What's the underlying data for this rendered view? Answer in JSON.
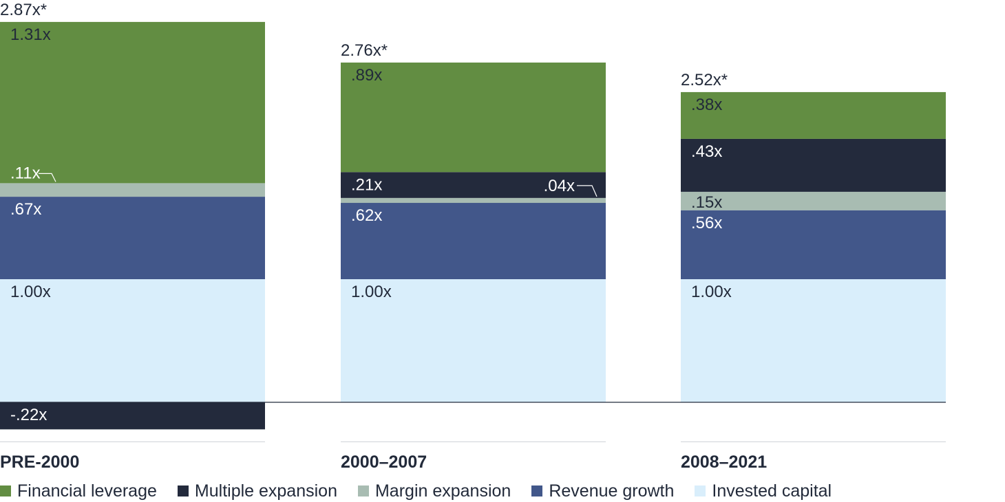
{
  "chart_data": {
    "type": "bar",
    "stacked": true,
    "categories": [
      "PRE-2000",
      "2000–2007",
      "2008–2021"
    ],
    "totals": [
      "2.87x*",
      "2.76x*",
      "2.52x*"
    ],
    "total_values": [
      2.87,
      2.76,
      2.52
    ],
    "series": [
      {
        "name": "Invested capital",
        "color": "#d9eefb",
        "values": [
          1.0,
          1.0,
          1.0
        ],
        "labels": [
          "1.00x",
          "1.00x",
          "1.00x"
        ]
      },
      {
        "name": "Revenue growth",
        "color": "#42578a",
        "values": [
          0.67,
          0.62,
          0.56
        ],
        "labels": [
          ".67x",
          ".62x",
          ".56x"
        ]
      },
      {
        "name": "Margin expansion",
        "color": "#a8bcb2",
        "values": [
          0.11,
          0.04,
          0.15
        ],
        "labels": [
          ".11x",
          ".04x",
          ".15x"
        ]
      },
      {
        "name": "Multiple expansion",
        "color": "#232a3c",
        "values": [
          -0.22,
          0.21,
          0.43
        ],
        "labels": [
          "-.22x",
          ".21x",
          ".43x"
        ]
      },
      {
        "name": "Financial leverage",
        "color": "#628d42",
        "values": [
          1.31,
          0.89,
          0.38
        ],
        "labels": [
          "1.31x",
          ".89x",
          ".38x"
        ]
      }
    ],
    "legend_order": [
      "Financial leverage",
      "Multiple expansion",
      "Margin expansion",
      "Revenue growth",
      "Invested capital"
    ],
    "legend_position": "bottom-left",
    "grid": false,
    "ylim": [
      -0.22,
      2.87
    ]
  }
}
